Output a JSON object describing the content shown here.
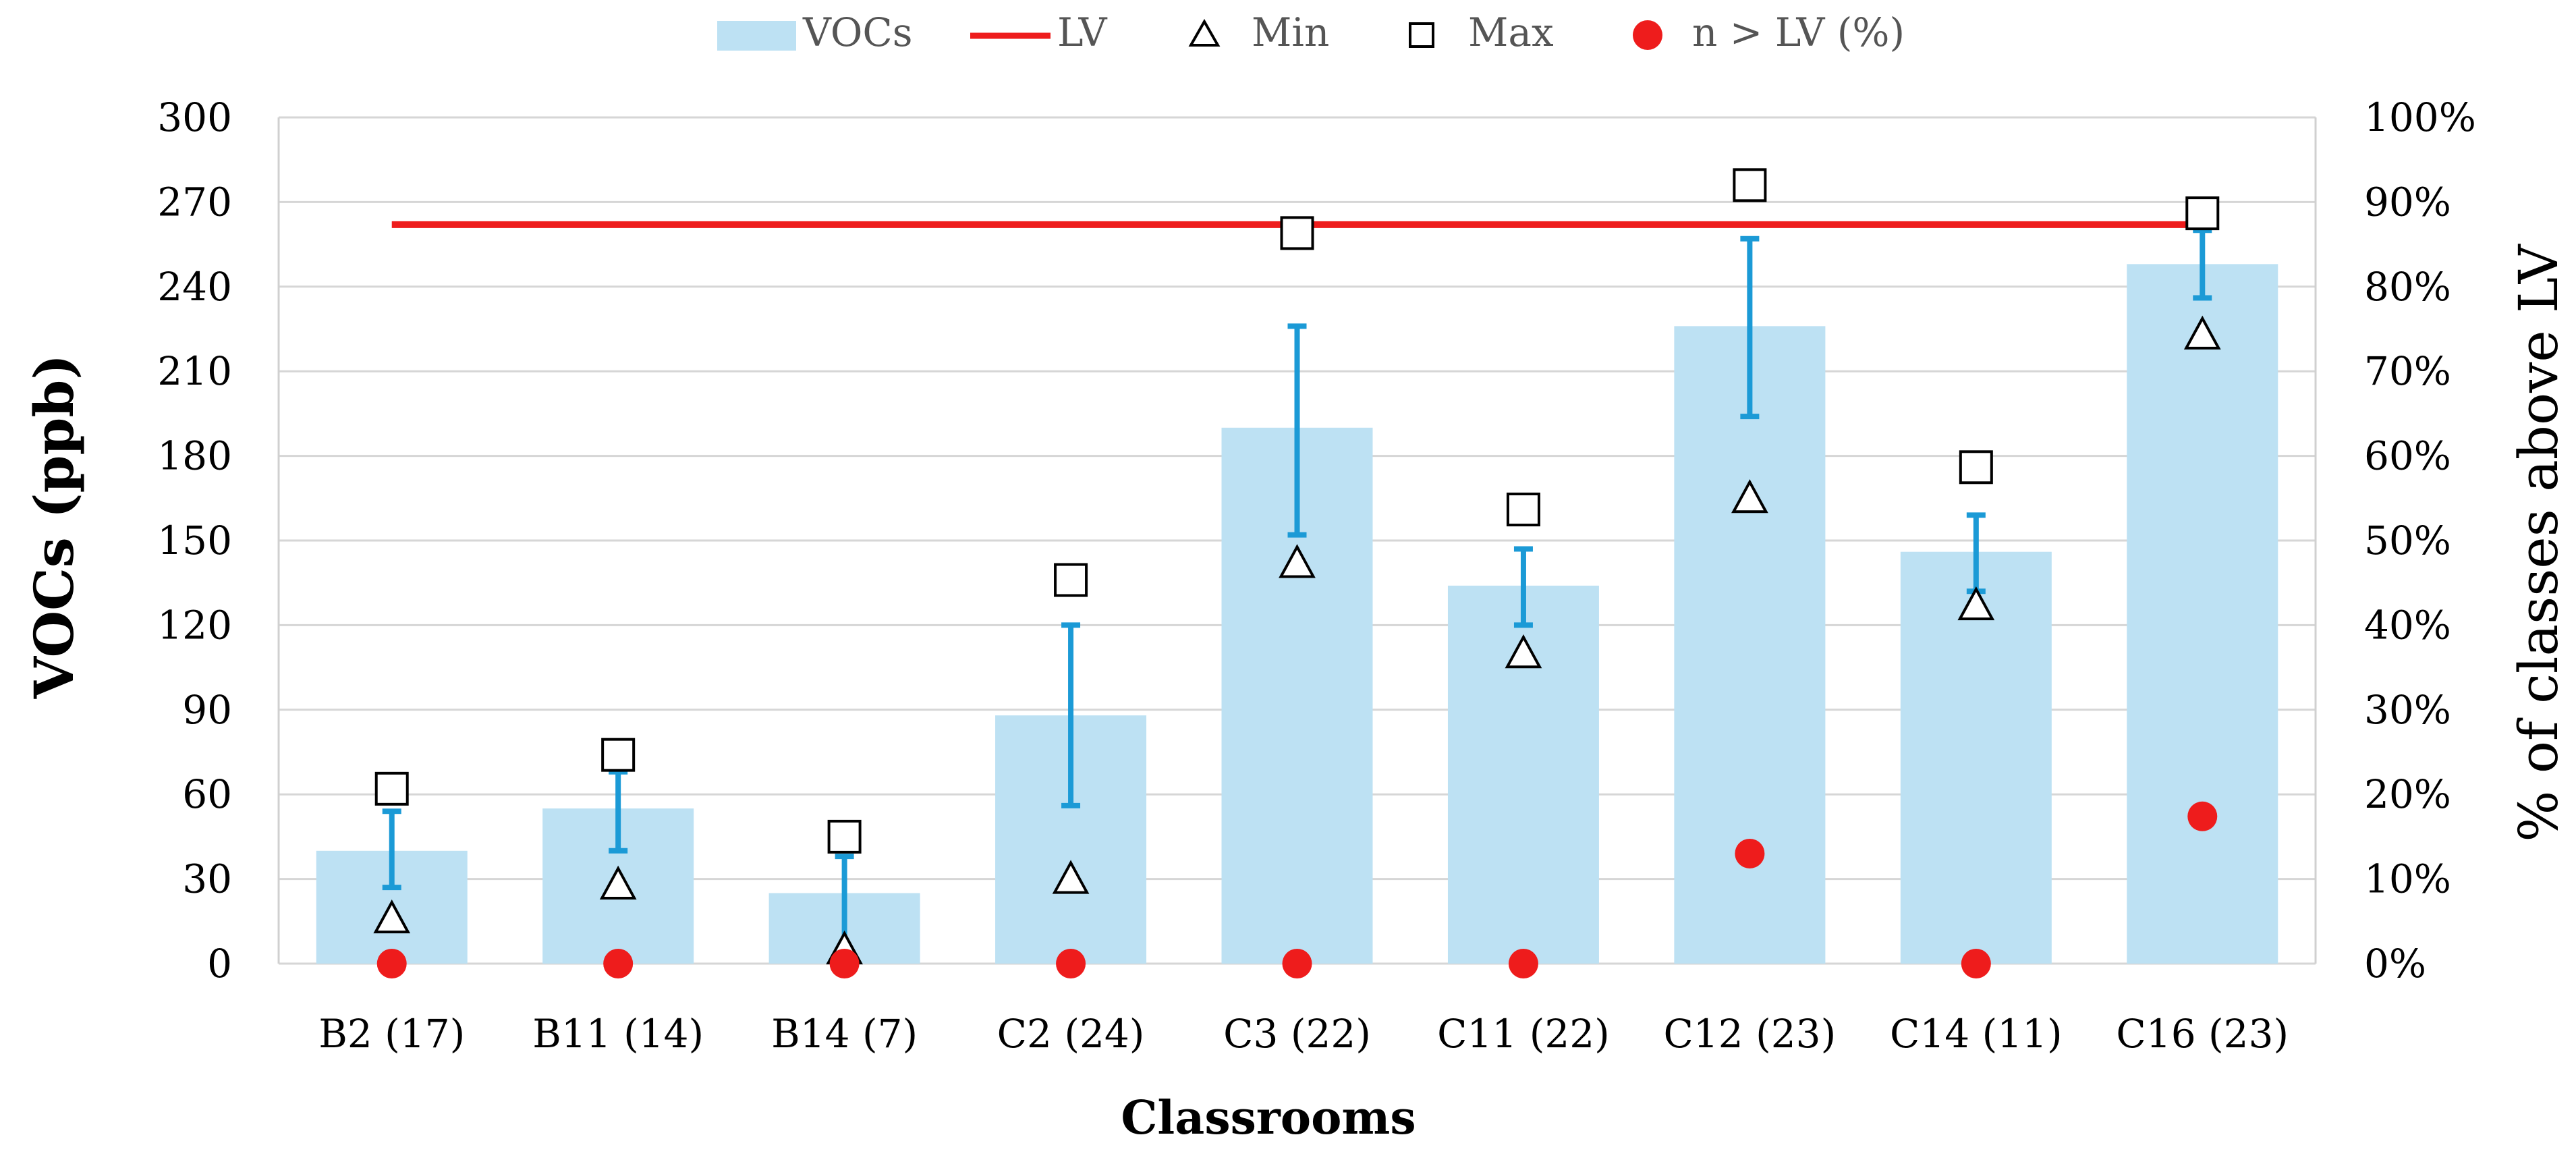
{
  "chart_data": {
    "type": "bar",
    "categories": [
      "B2 (17)",
      "B11 (14)",
      "B14 (7)",
      "C2 (24)",
      "C3 (22)",
      "C11 (22)",
      "C12 (23)",
      "C14 (11)",
      "C16 (23)"
    ],
    "xlabel": "Classrooms",
    "ylabel": "VOCs (ppb)",
    "y2label": "% of classes above LV",
    "ylim": [
      0,
      300
    ],
    "yticks": [
      0,
      30,
      60,
      90,
      120,
      150,
      180,
      210,
      240,
      270,
      300
    ],
    "y2lim": [
      0,
      100
    ],
    "y2ticks": [
      "0%",
      "10%",
      "20%",
      "30%",
      "40%",
      "50%",
      "60%",
      "70%",
      "80%",
      "90%",
      "100%"
    ],
    "grid": true,
    "legend": {
      "position": "top",
      "entries": [
        "VOCs",
        "LV",
        "Min",
        "Max",
        "n > LV (%)"
      ]
    },
    "series": [
      {
        "name": "VOCs",
        "type": "bar",
        "axis": "left",
        "values": [
          40,
          55,
          25,
          88,
          190,
          134,
          226,
          146,
          248
        ],
        "error_low": [
          27,
          40,
          3,
          56,
          152,
          120,
          194,
          132,
          236
        ],
        "error_high": [
          54,
          68,
          38,
          120,
          226,
          147,
          257,
          159,
          260
        ]
      },
      {
        "name": "LV",
        "type": "line",
        "axis": "left",
        "value": 262
      },
      {
        "name": "Min",
        "type": "marker",
        "axis": "left",
        "values": [
          16,
          28,
          5,
          30,
          142,
          110,
          165,
          127,
          223
        ]
      },
      {
        "name": "Max",
        "type": "marker",
        "axis": "left",
        "values": [
          62,
          74,
          45,
          136,
          259,
          161,
          276,
          176,
          266
        ]
      },
      {
        "name": "n > LV (%)",
        "type": "marker",
        "axis": "right",
        "values": [
          0,
          0,
          0,
          0,
          0,
          0,
          13,
          0,
          17.4
        ]
      }
    ]
  },
  "colors": {
    "bar": "#bde1f3",
    "errorbar": "#1b9ad6",
    "lv": "#ee1c1c",
    "dot": "#ee1c1c",
    "grid": "#d6d6d6",
    "axis": "#d0d0d0",
    "text": "#000000",
    "legend_text": "#555555"
  }
}
